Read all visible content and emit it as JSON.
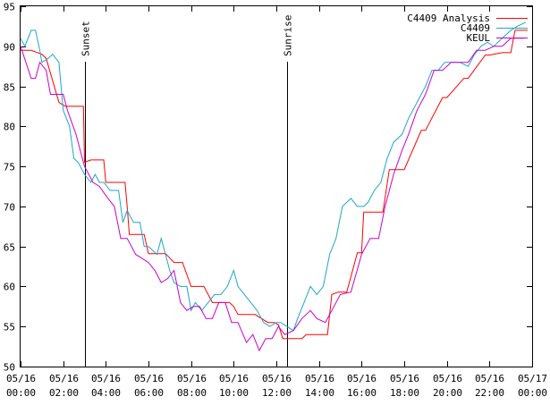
{
  "chart_data": {
    "type": "line",
    "title": "",
    "xlabel": "",
    "ylabel": "",
    "xlim": [
      0,
      24
    ],
    "ylim": [
      50,
      95
    ],
    "grid": false,
    "legend_position": "top-right",
    "x_ticks": [
      {
        "x": 0,
        "date": "05/16",
        "time": "00:00"
      },
      {
        "x": 2,
        "date": "05/16",
        "time": "02:00"
      },
      {
        "x": 4,
        "date": "05/16",
        "time": "04:00"
      },
      {
        "x": 6,
        "date": "05/16",
        "time": "06:00"
      },
      {
        "x": 8,
        "date": "05/16",
        "time": "08:00"
      },
      {
        "x": 10,
        "date": "05/16",
        "time": "10:00"
      },
      {
        "x": 12,
        "date": "05/16",
        "time": "12:00"
      },
      {
        "x": 14,
        "date": "05/16",
        "time": "14:00"
      },
      {
        "x": 16,
        "date": "05/16",
        "time": "16:00"
      },
      {
        "x": 18,
        "date": "05/16",
        "time": "18:00"
      },
      {
        "x": 20,
        "date": "05/16",
        "time": "20:00"
      },
      {
        "x": 22,
        "date": "05/16",
        "time": "22:00"
      },
      {
        "x": 24,
        "date": "05/17",
        "time": "00:00"
      }
    ],
    "y_ticks": [
      "50",
      "55",
      "60",
      "65",
      "70",
      "75",
      "80",
      "85",
      "90",
      "95"
    ],
    "annotations": [
      {
        "x": 3.0,
        "label": "Sunset"
      },
      {
        "x": 12.5,
        "label": "Sunrise"
      }
    ],
    "series": [
      {
        "name": "C4409 Analysis",
        "color": "#ff0000",
        "x": [
          0,
          0.5,
          1,
          1.2,
          1.8,
          2.1,
          2.3,
          2.95,
          3.0,
          3.3,
          3.9,
          4.0,
          4.6,
          4.9,
          5.0,
          5.1,
          5.8,
          6.0,
          6.8,
          7.2,
          7.4,
          7.6,
          8.0,
          8.6,
          9.0,
          9.8,
          10.0,
          10.2,
          10.7,
          11.0,
          11.6,
          11.9,
          12.1,
          12.3,
          12.6,
          12.9,
          13.2,
          13.4,
          14.0,
          14.4,
          14.6,
          14.9,
          15.3,
          15.8,
          16.0,
          16.1,
          17.0,
          17.3,
          18.0,
          18.8,
          19.0,
          19.8,
          20.0,
          20.8,
          21.0,
          21.8,
          22.0,
          22.6,
          23.0,
          23.2,
          23.8
        ],
        "y": [
          89.5,
          89.5,
          89,
          88.5,
          83,
          82.5,
          82.5,
          82.5,
          75.5,
          75.8,
          75.8,
          73,
          73,
          73,
          70,
          66.5,
          66.5,
          64.1,
          64.1,
          63,
          63,
          63,
          60,
          60,
          58,
          58,
          57.5,
          56.5,
          56.5,
          56.5,
          55.5,
          55.5,
          55.2,
          53.5,
          53.5,
          53.5,
          53.5,
          54,
          54,
          54,
          59,
          59.3,
          59.3,
          64.2,
          64.2,
          69.3,
          69.3,
          74.6,
          74.6,
          79.5,
          79.5,
          83.6,
          83.6,
          86,
          86,
          88.9,
          88.9,
          89.2,
          89.2,
          92,
          92
        ]
      },
      {
        "name": "C4409",
        "color": "#1fa6c9",
        "x": [
          0,
          0.2,
          0.5,
          0.7,
          0.9,
          1.0,
          1.3,
          1.5,
          1.8,
          2.0,
          2.3,
          2.5,
          2.7,
          3.0,
          3.3,
          3.5,
          3.7,
          3.9,
          4.2,
          4.6,
          4.8,
          5.0,
          5.3,
          5.6,
          5.8,
          6.0,
          6.4,
          6.6,
          7.0,
          7.2,
          7.5,
          7.8,
          8.0,
          8.2,
          8.5,
          8.8,
          9.1,
          9.4,
          9.7,
          10.0,
          10.2,
          10.5,
          10.8,
          11.1,
          11.4,
          11.7,
          12.0,
          12.2,
          12.5,
          12.8,
          13.0,
          13.3,
          13.6,
          13.9,
          14.2,
          14.5,
          14.8,
          15.1,
          15.5,
          15.8,
          16.1,
          16.3,
          16.6,
          16.9,
          17.2,
          17.5,
          17.9,
          18.2,
          18.6,
          19.0,
          19.3,
          19.6,
          19.9,
          20.3,
          20.6,
          21.0,
          21.3,
          21.6,
          21.9,
          22.2,
          22.6,
          23.0,
          23.3,
          23.7
        ],
        "y": [
          91,
          90,
          92,
          92,
          89.5,
          88,
          88.5,
          89,
          88,
          82,
          80,
          76,
          75.5,
          74,
          73,
          74,
          73,
          73,
          72,
          72,
          68,
          69.5,
          68,
          68,
          65,
          65,
          64,
          66,
          62,
          60.5,
          60,
          60,
          57,
          58,
          57,
          58,
          59,
          59,
          60,
          62,
          60,
          59,
          58,
          57,
          55.5,
          55,
          55.5,
          55.5,
          55,
          54.5,
          56,
          58,
          60,
          59,
          60,
          64,
          66,
          70,
          71,
          70,
          70,
          70.5,
          72,
          73,
          76,
          78,
          79,
          81,
          83,
          85,
          87,
          87,
          88,
          88,
          88,
          87.5,
          89,
          90,
          90.5,
          90,
          91,
          92,
          92.5,
          93
        ]
      },
      {
        "name": "KEUL",
        "color": "#cc00cc",
        "x": [
          0,
          0.5,
          0.7,
          0.9,
          1.2,
          1.4,
          1.6,
          1.9,
          2.0,
          2.2,
          2.6,
          2.9,
          3.0,
          3.4,
          3.7,
          4.1,
          4.4,
          4.7,
          5.0,
          5.4,
          5.7,
          6.0,
          6.3,
          6.6,
          6.9,
          7.2,
          7.5,
          7.8,
          8.1,
          8.4,
          8.7,
          9.0,
          9.3,
          9.6,
          9.9,
          10.2,
          10.6,
          10.9,
          11.2,
          11.5,
          11.8,
          12.1,
          12.4,
          12.8,
          13.2,
          13.6,
          13.9,
          14.3,
          14.6,
          15.0,
          15.5,
          16.0,
          16.4,
          16.8,
          17.1,
          17.5,
          17.9,
          18.2,
          18.6,
          19.0,
          19.4,
          19.8,
          20.2,
          20.6,
          21.0,
          21.4,
          21.8,
          22.2,
          22.6,
          23.0,
          23.6
        ],
        "y": [
          90,
          86,
          86,
          88,
          87,
          84,
          84,
          84,
          84,
          82,
          79,
          76,
          75,
          73,
          72.5,
          71,
          70,
          66,
          66,
          64,
          63.5,
          63,
          62,
          60.5,
          61,
          62,
          58,
          57,
          57.5,
          57.5,
          56,
          56,
          58,
          58,
          55.5,
          55.5,
          53,
          54,
          52,
          53.5,
          53.5,
          55,
          54,
          54.5,
          56,
          57,
          56,
          55.5,
          57,
          59,
          59.3,
          64,
          66,
          66,
          70,
          74,
          77,
          79,
          82,
          84,
          87,
          87,
          88,
          88,
          88,
          89.5,
          89.5,
          90,
          90,
          91,
          91
        ]
      }
    ]
  }
}
